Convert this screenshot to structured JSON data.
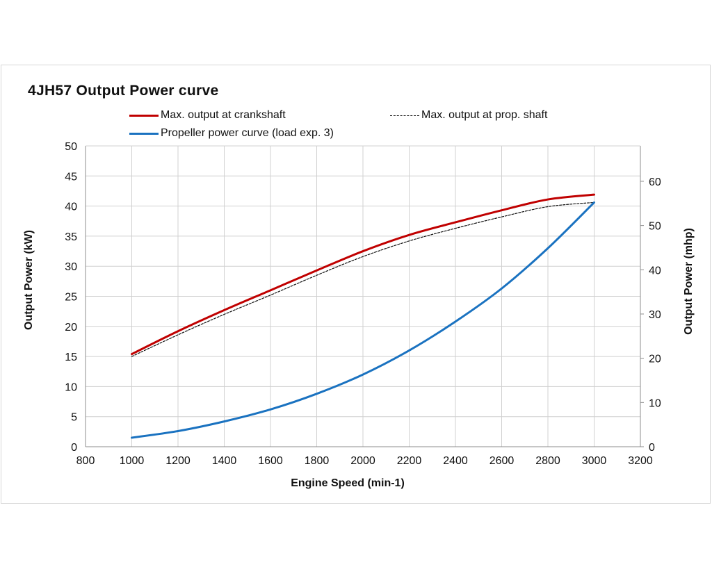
{
  "chart_data": {
    "type": "line",
    "title": "4JH57 Output Power curve",
    "xlabel": "Engine Speed (min-1)",
    "ylabel": "Output Power (kW)",
    "ylabel_right": "Output Power (mhp)",
    "xlim": [
      800,
      3200
    ],
    "ylim": [
      0,
      50
    ],
    "ylim_right": [
      0,
      68
    ],
    "x_ticks": [
      800,
      1000,
      1200,
      1400,
      1600,
      1800,
      2000,
      2200,
      2400,
      2600,
      2800,
      3000,
      3200
    ],
    "y_ticks": [
      0,
      5,
      10,
      15,
      20,
      25,
      30,
      35,
      40,
      45,
      50
    ],
    "y_ticks_right": [
      0,
      10,
      20,
      30,
      40,
      50,
      60
    ],
    "grid": true,
    "legend_position": "top",
    "x": [
      1000,
      1200,
      1400,
      1600,
      1800,
      2000,
      2200,
      2400,
      2600,
      2800,
      3000
    ],
    "series": [
      {
        "name": "Max. output at crankshaft",
        "color": "#c00000",
        "style": "solid",
        "values": [
          15.4,
          19.2,
          22.7,
          26.0,
          29.3,
          32.5,
          35.2,
          37.3,
          39.3,
          41.1,
          41.9
        ]
      },
      {
        "name": "Max. output at prop. shaft",
        "color": "#111111",
        "style": "dashed",
        "values": [
          15.0,
          18.6,
          22.0,
          25.2,
          28.5,
          31.6,
          34.2,
          36.3,
          38.2,
          39.9,
          40.6
        ]
      },
      {
        "name": "Propeller power curve (load exp. 3)",
        "color": "#1a72c0",
        "style": "solid",
        "values": [
          1.5,
          2.6,
          4.2,
          6.2,
          8.8,
          12.0,
          16.0,
          20.8,
          26.3,
          33.0,
          40.6
        ]
      }
    ]
  }
}
